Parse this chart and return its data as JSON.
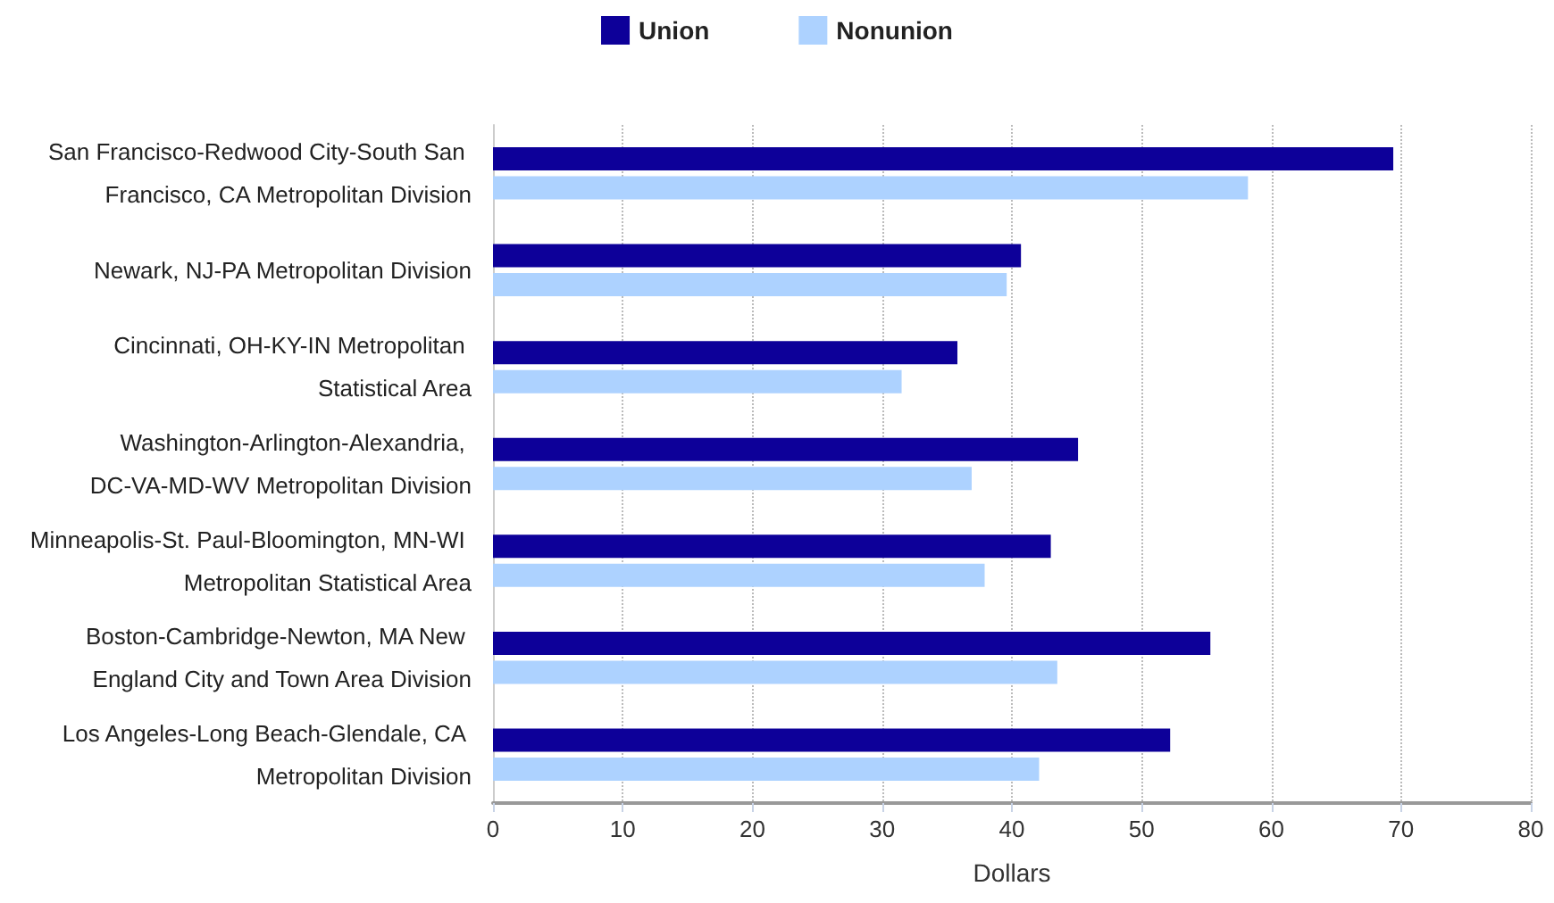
{
  "chart_data": {
    "type": "bar",
    "orientation": "horizontal",
    "xlabel": "Dollars",
    "categories": [
      "San Francisco-Redwood City-South San Francisco, CA Metropolitan Division",
      "Newark, NJ-PA Metropolitan Division",
      "Cincinnati, OH-KY-IN Metropolitan Statistical Area",
      "Washington-Arlington-Alexandria, DC-VA-MD-WV Metropolitan Division",
      "Minneapolis-St. Paul-Bloomington, MN-WI Metropolitan Statistical Area",
      "Boston-Cambridge-Newton, MA New England City and Town Area Division",
      "Los Angeles-Long Beach-Glendale, CA Metropolitan Division"
    ],
    "series": [
      {
        "name": "Union",
        "color": "#0d0099",
        "values": [
          69.4,
          40.7,
          35.8,
          45.1,
          43.0,
          55.3,
          52.2
        ]
      },
      {
        "name": "Nonunion",
        "color": "#add2ff",
        "values": [
          58.2,
          39.6,
          31.5,
          36.9,
          37.9,
          43.5,
          42.1
        ]
      }
    ],
    "xlim": [
      0,
      80
    ],
    "xticks": [
      0,
      10,
      20,
      30,
      40,
      50,
      60,
      70,
      80
    ],
    "grid": "x",
    "legend": "top"
  }
}
